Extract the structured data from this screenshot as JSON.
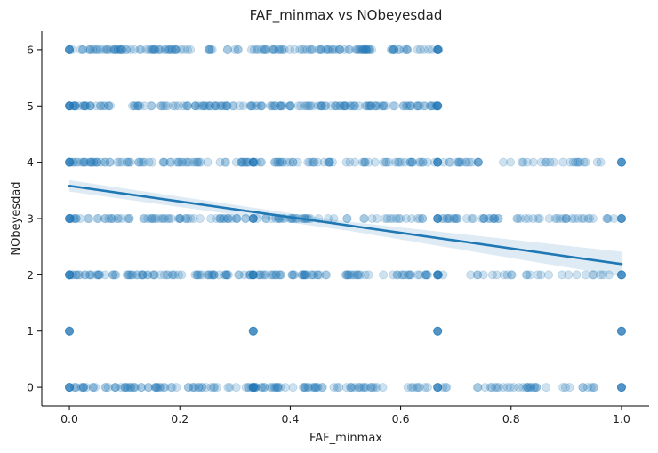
{
  "chart_data": {
    "type": "scatter",
    "title": "FAF_minmax vs NObeyesdad",
    "xlabel": "FAF_minmax",
    "ylabel": "NObeyesdad",
    "xlim": [
      -0.05,
      1.05
    ],
    "ylim": [
      -0.33,
      6.33
    ],
    "xticks": [
      0.0,
      0.2,
      0.4,
      0.6,
      0.8,
      1.0
    ],
    "xtick_labels": [
      "0.0",
      "0.2",
      "0.4",
      "0.6",
      "0.8",
      "1.0"
    ],
    "yticks": [
      0,
      1,
      2,
      3,
      4,
      5,
      6
    ],
    "ytick_labels": [
      "0",
      "1",
      "2",
      "3",
      "4",
      "5",
      "6"
    ],
    "grid": false,
    "point_color": "#1f77b4",
    "point_opacity": 0.22,
    "line_color": "#1f77b4",
    "band_color": "#1f77b4",
    "regression": {
      "intercept": 3.58,
      "slope": -1.39
    },
    "confidence_band": [
      {
        "x": 0.0,
        "lo": 3.48,
        "hi": 3.68
      },
      {
        "x": 0.5,
        "lo": 2.79,
        "hi": 2.95
      },
      {
        "x": 1.0,
        "lo": 1.97,
        "hi": 2.41
      }
    ],
    "level_ranges": [
      {
        "y": 6,
        "segments": [
          [
            0.0,
            0.22,
            60
          ],
          [
            0.25,
            0.67,
            90
          ]
        ]
      },
      {
        "y": 5,
        "segments": [
          [
            0.0,
            0.08,
            25
          ],
          [
            0.1,
            0.67,
            140
          ]
        ]
      },
      {
        "y": 4,
        "segments": [
          [
            0.0,
            0.48,
            100
          ],
          [
            0.5,
            0.75,
            45
          ],
          [
            0.78,
            0.97,
            22
          ]
        ]
      },
      {
        "y": 3,
        "segments": [
          [
            0.0,
            0.48,
            90
          ],
          [
            0.5,
            0.78,
            45
          ],
          [
            0.8,
            0.99,
            28
          ]
        ]
      },
      {
        "y": 2,
        "segments": [
          [
            0.0,
            0.48,
            110
          ],
          [
            0.5,
            0.7,
            35
          ],
          [
            0.72,
            0.99,
            25
          ]
        ]
      },
      {
        "y": 0,
        "segments": [
          [
            0.0,
            0.57,
            120
          ],
          [
            0.61,
            0.96,
            45
          ]
        ]
      }
    ],
    "clusters": [
      {
        "x": 0.0,
        "y": 6
      },
      {
        "x": 0.0,
        "y": 5
      },
      {
        "x": 0.0,
        "y": 4
      },
      {
        "x": 0.0,
        "y": 3
      },
      {
        "x": 0.0,
        "y": 2
      },
      {
        "x": 0.0,
        "y": 1
      },
      {
        "x": 0.0,
        "y": 0
      },
      {
        "x": 0.333,
        "y": 4
      },
      {
        "x": 0.333,
        "y": 3
      },
      {
        "x": 0.333,
        "y": 2
      },
      {
        "x": 0.333,
        "y": 1
      },
      {
        "x": 0.333,
        "y": 0
      },
      {
        "x": 0.667,
        "y": 6
      },
      {
        "x": 0.667,
        "y": 5
      },
      {
        "x": 0.667,
        "y": 4
      },
      {
        "x": 0.667,
        "y": 3
      },
      {
        "x": 0.667,
        "y": 2
      },
      {
        "x": 0.667,
        "y": 1
      },
      {
        "x": 0.667,
        "y": 0
      },
      {
        "x": 1.0,
        "y": 4
      },
      {
        "x": 1.0,
        "y": 3
      },
      {
        "x": 1.0,
        "y": 2
      },
      {
        "x": 1.0,
        "y": 1
      },
      {
        "x": 1.0,
        "y": 0
      }
    ]
  }
}
